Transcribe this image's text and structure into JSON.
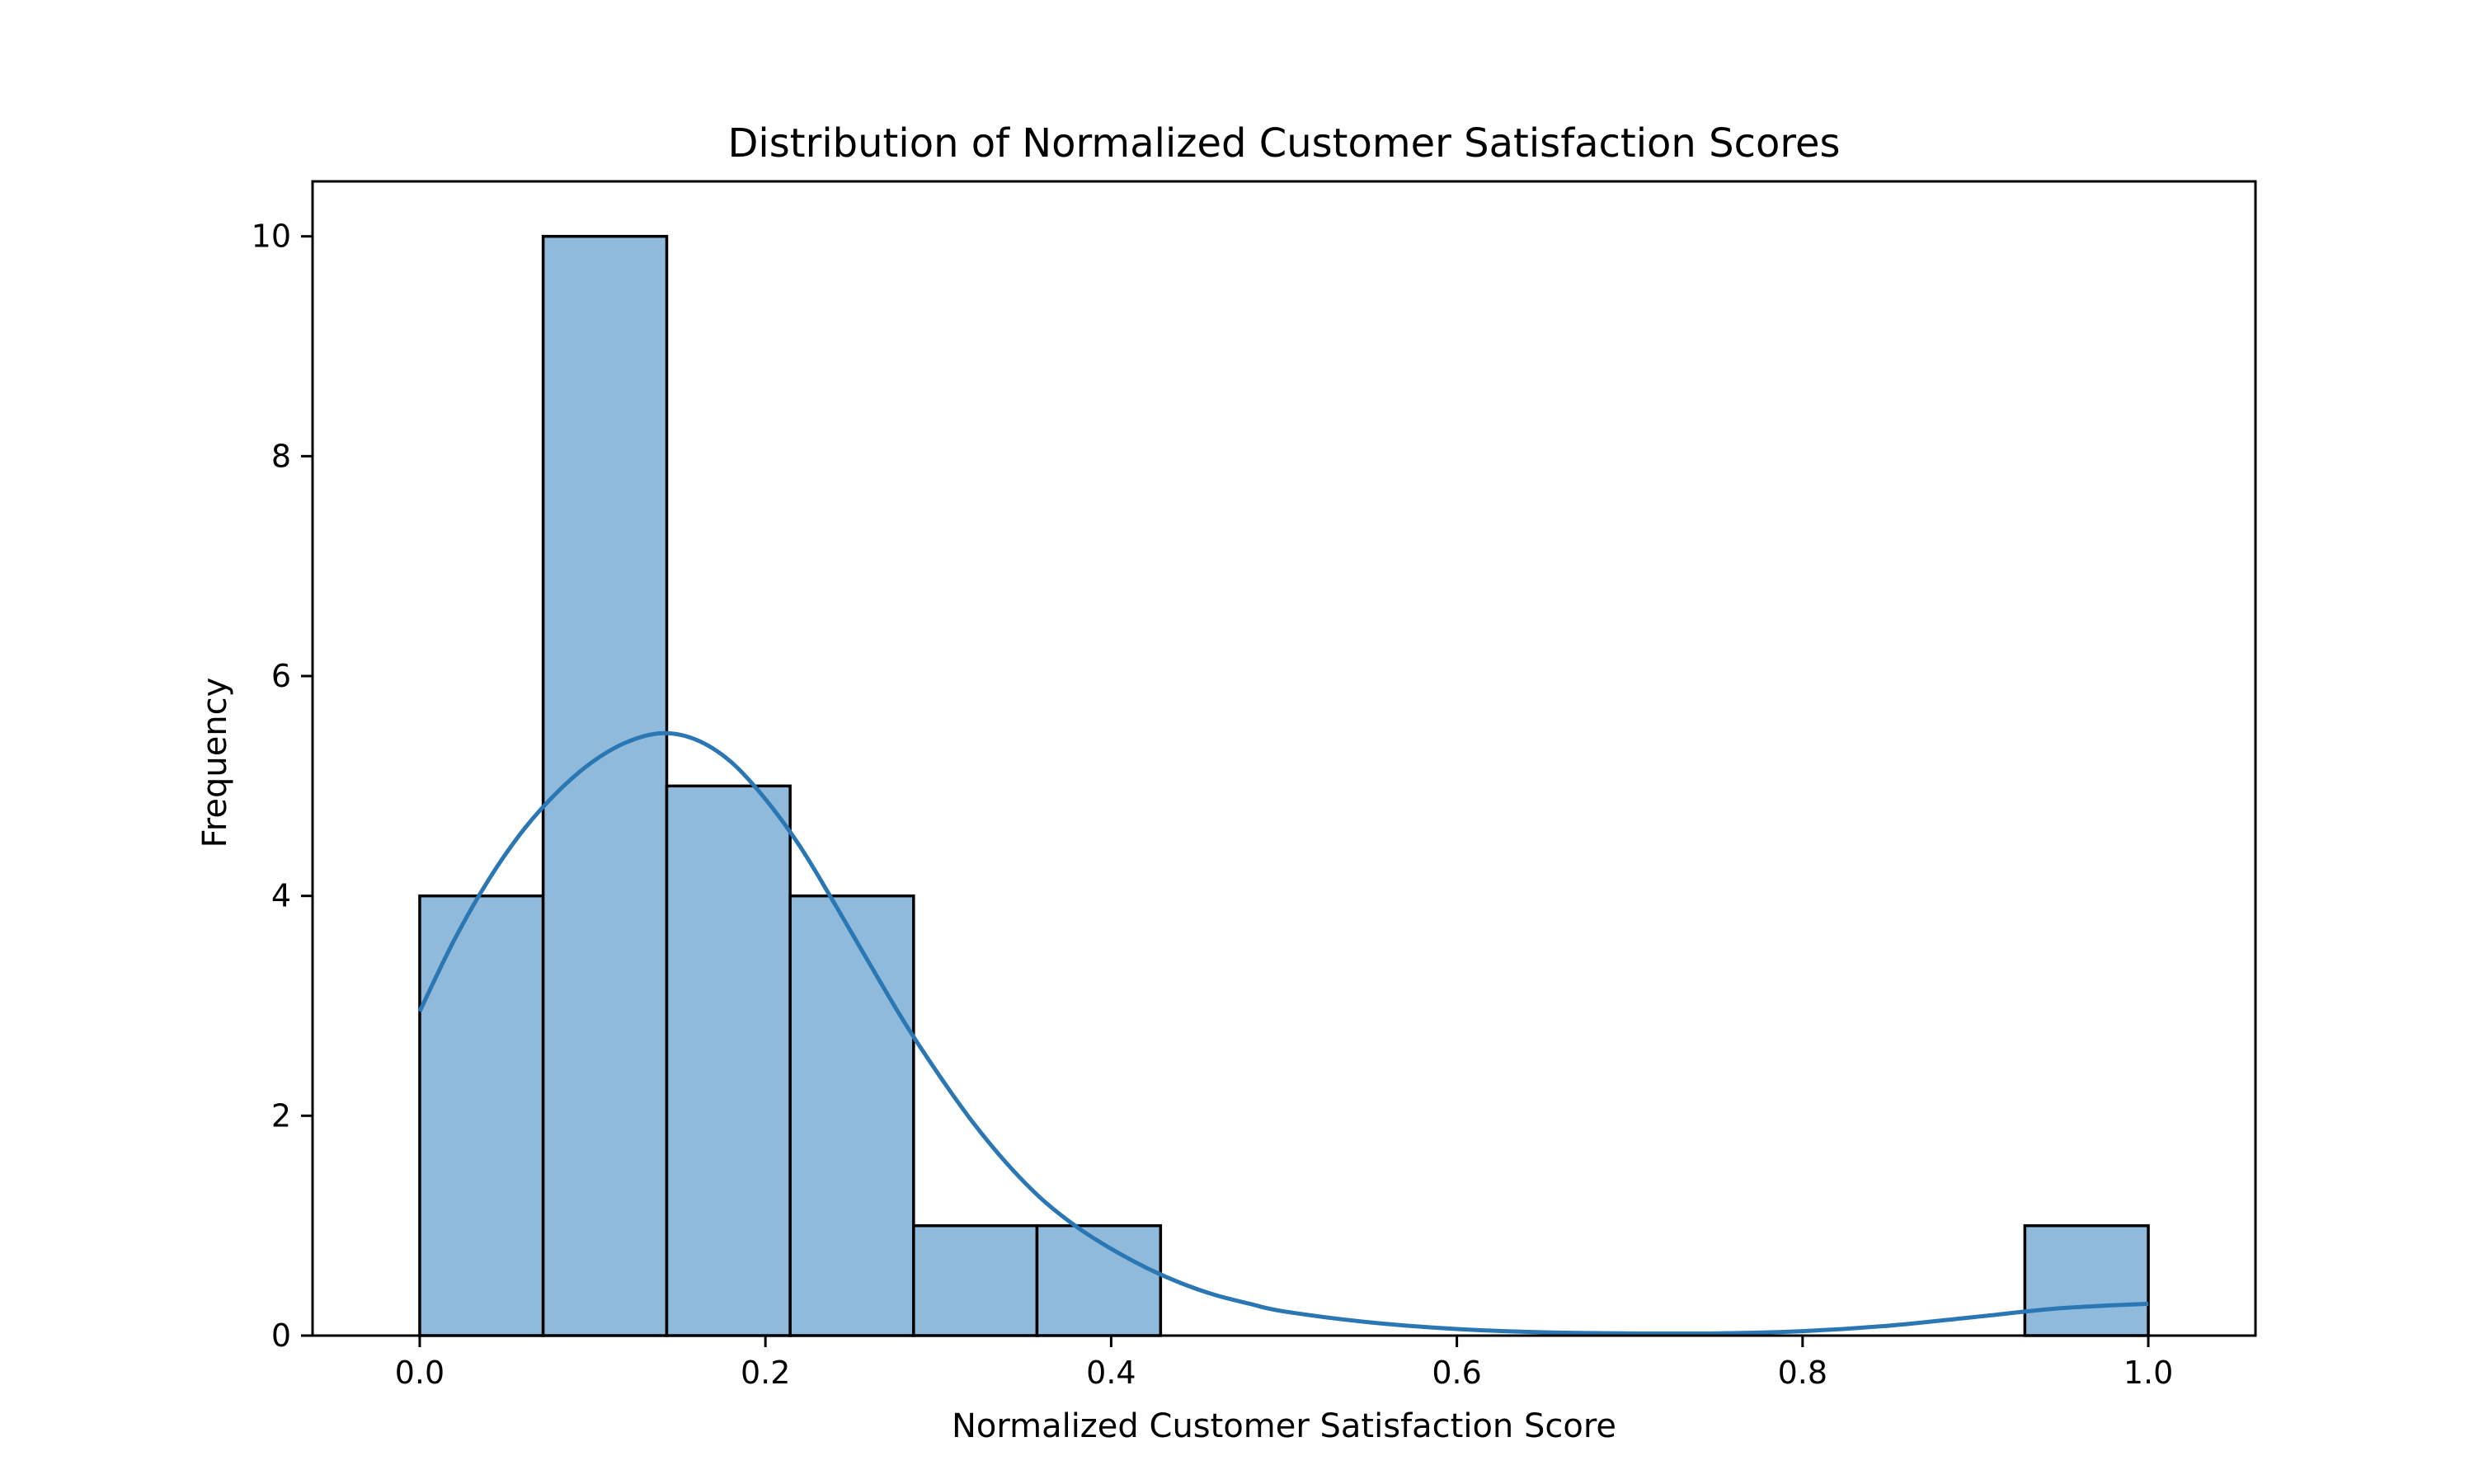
{
  "chart_data": {
    "type": "bar",
    "subtype": "histogram-with-kde",
    "title": "Distribution of Normalized Customer Satisfaction Scores",
    "xlabel": "Normalized Customer Satisfaction Score",
    "ylabel": "Frequency",
    "xlim": [
      -0.062,
      1.062
    ],
    "ylim": [
      0,
      10.5
    ],
    "xticks": [
      0.0,
      0.2,
      0.4,
      0.6,
      0.8,
      1.0
    ],
    "xtick_labels": [
      "0.0",
      "0.2",
      "0.4",
      "0.6",
      "0.8",
      "1.0"
    ],
    "yticks": [
      0,
      2,
      4,
      6,
      8,
      10
    ],
    "ytick_labels": [
      "0",
      "2",
      "4",
      "6",
      "8",
      "10"
    ],
    "bin_edges": [
      0.0,
      0.0714,
      0.1429,
      0.2143,
      0.2857,
      0.3571,
      0.4286,
      0.5,
      0.5714,
      0.6429,
      0.7143,
      0.7857,
      0.8571,
      0.9286,
      1.0
    ],
    "counts": [
      4,
      10,
      5,
      4,
      1,
      1,
      0,
      0,
      0,
      0,
      0,
      0,
      0,
      1
    ],
    "kde": {
      "x": [
        0.0,
        0.02,
        0.04,
        0.06,
        0.08,
        0.1,
        0.12,
        0.14,
        0.16,
        0.18,
        0.2,
        0.22,
        0.24,
        0.26,
        0.28,
        0.3,
        0.32,
        0.34,
        0.36,
        0.38,
        0.4,
        0.42,
        0.44,
        0.46,
        0.48,
        0.5,
        0.55,
        0.6,
        0.65,
        0.7,
        0.75,
        0.8,
        0.85,
        0.9,
        0.95,
        1.0
      ],
      "y": [
        2.95,
        3.6,
        4.15,
        4.6,
        4.95,
        5.22,
        5.4,
        5.48,
        5.42,
        5.22,
        4.88,
        4.45,
        3.93,
        3.39,
        2.86,
        2.38,
        1.94,
        1.56,
        1.24,
        0.99,
        0.79,
        0.62,
        0.48,
        0.37,
        0.29,
        0.22,
        0.12,
        0.06,
        0.03,
        0.02,
        0.02,
        0.04,
        0.09,
        0.17,
        0.25,
        0.29
      ]
    },
    "colors": {
      "bar_fill": "#8fbadb",
      "bar_edge": "#000000",
      "kde_line": "#2a77b4"
    },
    "grid": false,
    "legend": "none"
  }
}
